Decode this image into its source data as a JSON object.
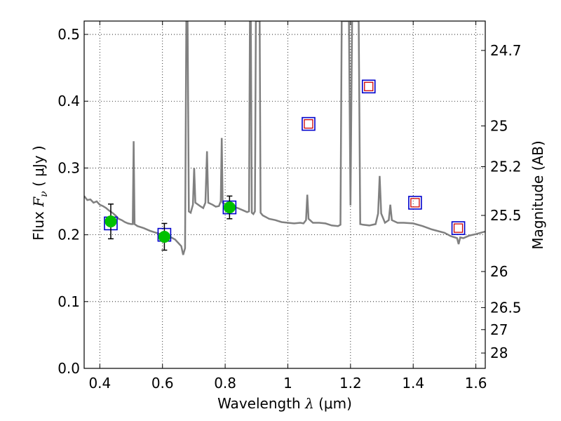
{
  "chart_data": {
    "type": "line",
    "title": "",
    "xlabel": {
      "prefix": "Wavelength  ",
      "symbol": "λ",
      "unit": " (μm)"
    },
    "ylabel": {
      "prefix": "Flux  ",
      "symbol": "F",
      "subscript": "ν",
      "unit": "  ( μJy )"
    },
    "y2label": "Magnitude (AB)",
    "xlim": [
      0.35,
      1.63
    ],
    "ylim": [
      0.0,
      0.52
    ],
    "grid": true,
    "x_ticks": [
      0.4,
      0.6,
      0.8,
      1.0,
      1.2,
      1.4,
      1.6
    ],
    "x_tick_labels": [
      "0.4",
      "0.6",
      "0.8",
      "1",
      "1.2",
      "1.4",
      "1.6"
    ],
    "y_ticks": [
      0.0,
      0.1,
      0.2,
      0.3,
      0.4,
      0.5
    ],
    "y_tick_labels": [
      "0.0",
      "0.1",
      "0.2",
      "0.3",
      "0.4",
      "0.5"
    ],
    "mag_ticks": [
      {
        "label": "24.7",
        "flux": 0.476
      },
      {
        "label": "25",
        "flux": 0.363
      },
      {
        "label": "25.2",
        "flux": 0.302
      },
      {
        "label": "25.5",
        "flux": 0.229
      },
      {
        "label": "26",
        "flux": 0.145
      },
      {
        "label": "26.5",
        "flux": 0.091
      },
      {
        "label": "27",
        "flux": 0.058
      },
      {
        "label": "28",
        "flux": 0.023
      }
    ],
    "colors": {
      "spectrum": "#808080",
      "observed_fill": "#00c000",
      "model_box": "#0000cc",
      "upper_box": "#cc0000",
      "grid": "#000000"
    },
    "series": [
      {
        "style": "spectrum",
        "points": [
          [
            0.35,
            0.258
          ],
          [
            0.36,
            0.252
          ],
          [
            0.37,
            0.253
          ],
          [
            0.38,
            0.248
          ],
          [
            0.39,
            0.25
          ],
          [
            0.4,
            0.245
          ],
          [
            0.41,
            0.243
          ],
          [
            0.42,
            0.24
          ],
          [
            0.43,
            0.236
          ],
          [
            0.44,
            0.233
          ],
          [
            0.45,
            0.229
          ],
          [
            0.46,
            0.224
          ],
          [
            0.47,
            0.222
          ],
          [
            0.48,
            0.219
          ],
          [
            0.49,
            0.217
          ],
          [
            0.5,
            0.216
          ],
          [
            0.505,
            0.216
          ],
          [
            0.508,
            0.34
          ],
          [
            0.511,
            0.216
          ],
          [
            0.52,
            0.213
          ],
          [
            0.54,
            0.21
          ],
          [
            0.56,
            0.206
          ],
          [
            0.58,
            0.203
          ],
          [
            0.6,
            0.2
          ],
          [
            0.62,
            0.198
          ],
          [
            0.64,
            0.193
          ],
          [
            0.66,
            0.183
          ],
          [
            0.666,
            0.17
          ],
          [
            0.672,
            0.18
          ],
          [
            0.676,
            0.52
          ],
          [
            0.68,
            0.52
          ],
          [
            0.684,
            0.235
          ],
          [
            0.69,
            0.233
          ],
          [
            0.697,
            0.245
          ],
          [
            0.701,
            0.3
          ],
          [
            0.705,
            0.248
          ],
          [
            0.72,
            0.243
          ],
          [
            0.73,
            0.24
          ],
          [
            0.737,
            0.248
          ],
          [
            0.742,
            0.325
          ],
          [
            0.746,
            0.248
          ],
          [
            0.76,
            0.245
          ],
          [
            0.77,
            0.242
          ],
          [
            0.78,
            0.243
          ],
          [
            0.786,
            0.25
          ],
          [
            0.789,
            0.345
          ],
          [
            0.792,
            0.248
          ],
          [
            0.8,
            0.246
          ],
          [
            0.82,
            0.243
          ],
          [
            0.84,
            0.24
          ],
          [
            0.86,
            0.236
          ],
          [
            0.87,
            0.234
          ],
          [
            0.876,
            0.235
          ],
          [
            0.879,
            0.52
          ],
          [
            0.882,
            0.52
          ],
          [
            0.885,
            0.233
          ],
          [
            0.89,
            0.231
          ],
          [
            0.895,
            0.235
          ],
          [
            0.898,
            0.52
          ],
          [
            0.901,
            0.52
          ],
          [
            0.904,
            0.52
          ],
          [
            0.907,
            0.52
          ],
          [
            0.91,
            0.52
          ],
          [
            0.913,
            0.233
          ],
          [
            0.92,
            0.229
          ],
          [
            0.94,
            0.224
          ],
          [
            0.96,
            0.222
          ],
          [
            0.98,
            0.219
          ],
          [
            1.0,
            0.218
          ],
          [
            1.02,
            0.217
          ],
          [
            1.04,
            0.218
          ],
          [
            1.05,
            0.217
          ],
          [
            1.058,
            0.222
          ],
          [
            1.062,
            0.26
          ],
          [
            1.066,
            0.224
          ],
          [
            1.08,
            0.218
          ],
          [
            1.1,
            0.218
          ],
          [
            1.12,
            0.217
          ],
          [
            1.14,
            0.214
          ],
          [
            1.16,
            0.213
          ],
          [
            1.168,
            0.215
          ],
          [
            1.172,
            0.52
          ],
          [
            1.176,
            0.52
          ],
          [
            1.18,
            0.52
          ],
          [
            1.184,
            0.52
          ],
          [
            1.188,
            0.52
          ],
          [
            1.195,
            0.52
          ],
          [
            1.2,
            0.244
          ],
          [
            1.205,
            0.52
          ],
          [
            1.21,
            0.52
          ],
          [
            1.215,
            0.52
          ],
          [
            1.22,
            0.52
          ],
          [
            1.226,
            0.52
          ],
          [
            1.231,
            0.216
          ],
          [
            1.24,
            0.215
          ],
          [
            1.26,
            0.214
          ],
          [
            1.28,
            0.216
          ],
          [
            1.288,
            0.232
          ],
          [
            1.293,
            0.288
          ],
          [
            1.298,
            0.232
          ],
          [
            1.31,
            0.218
          ],
          [
            1.322,
            0.222
          ],
          [
            1.327,
            0.245
          ],
          [
            1.332,
            0.222
          ],
          [
            1.35,
            0.218
          ],
          [
            1.37,
            0.218
          ],
          [
            1.4,
            0.217
          ],
          [
            1.43,
            0.213
          ],
          [
            1.46,
            0.208
          ],
          [
            1.5,
            0.203
          ],
          [
            1.52,
            0.198
          ],
          [
            1.54,
            0.195
          ],
          [
            1.545,
            0.186
          ],
          [
            1.55,
            0.196
          ],
          [
            1.56,
            0.195
          ],
          [
            1.58,
            0.199
          ],
          [
            1.6,
            0.201
          ],
          [
            1.63,
            0.205
          ]
        ]
      },
      {
        "style": "observed",
        "points": [
          {
            "x": 0.435,
            "y": 0.22,
            "yerr": 0.026
          },
          {
            "x": 0.606,
            "y": 0.197,
            "yerr": 0.02
          },
          {
            "x": 0.814,
            "y": 0.241,
            "yerr": 0.017
          }
        ]
      },
      {
        "style": "model_box",
        "points": [
          {
            "x": 0.435,
            "y": 0.217
          },
          {
            "x": 0.606,
            "y": 0.2
          },
          {
            "x": 0.814,
            "y": 0.241
          },
          {
            "x": 1.066,
            "y": 0.366
          },
          {
            "x": 1.258,
            "y": 0.422
          },
          {
            "x": 1.406,
            "y": 0.248
          },
          {
            "x": 1.544,
            "y": 0.21
          }
        ]
      },
      {
        "style": "upper_box",
        "points": [
          {
            "x": 1.066,
            "y": 0.366
          },
          {
            "x": 1.258,
            "y": 0.422
          },
          {
            "x": 1.406,
            "y": 0.248
          },
          {
            "x": 1.544,
            "y": 0.21
          }
        ]
      }
    ]
  }
}
